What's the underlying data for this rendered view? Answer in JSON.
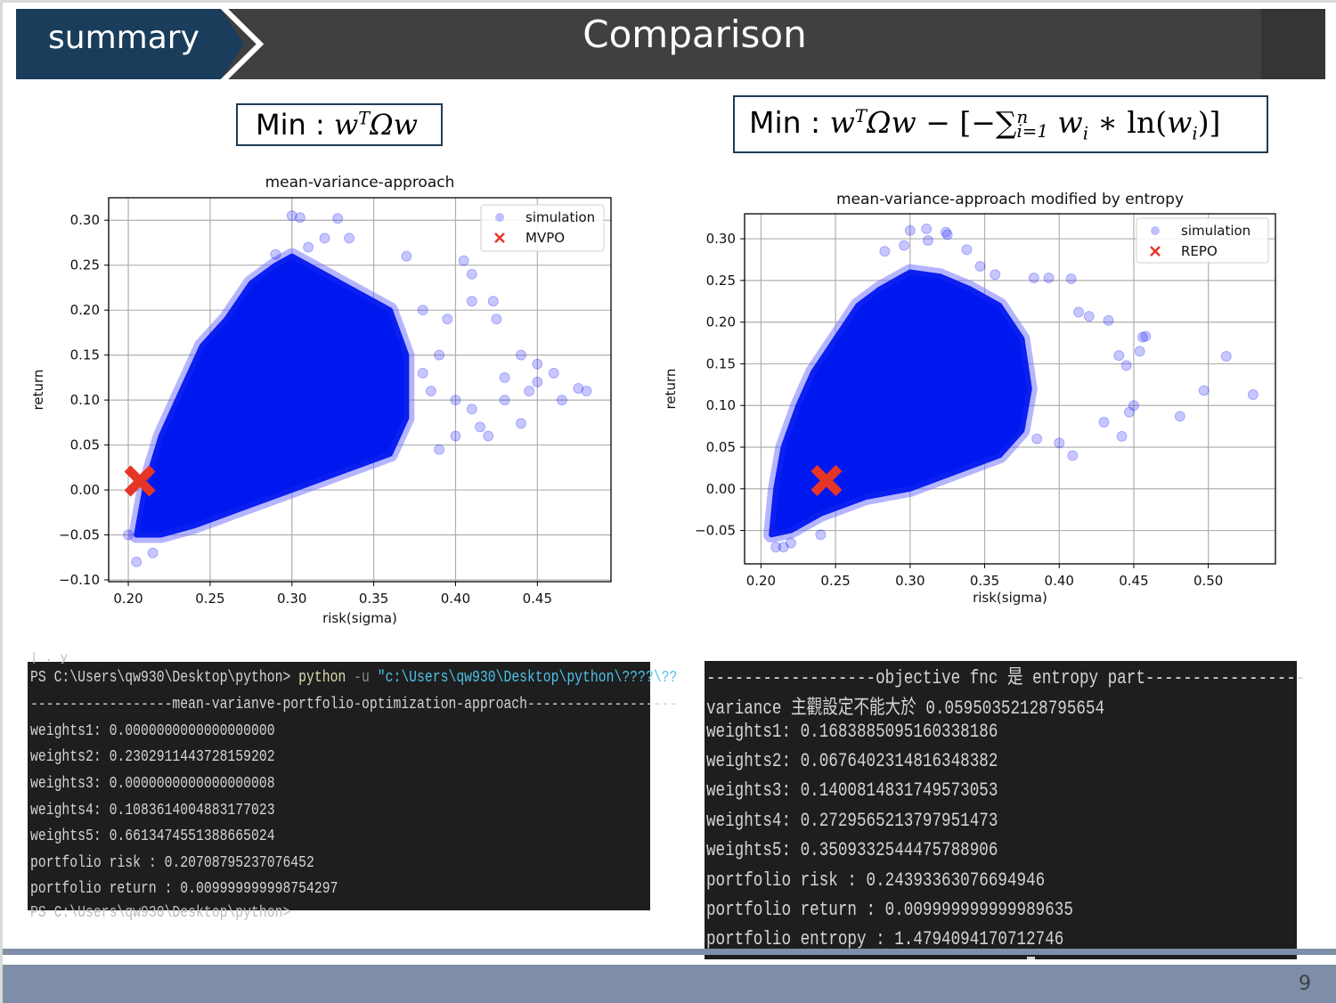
{
  "header": {
    "section_tab": "summary",
    "title": "Comparison",
    "colors": {
      "tab": "#1a3d5c",
      "bar": "#404040",
      "bar_right": "#363434"
    }
  },
  "formulas": {
    "left": {
      "prefix": "Min : ",
      "expr": "wᵀΩw"
    },
    "right": {
      "prefix": "Min : ",
      "expr": "wᵀΩw − [−∑ⁿᵢ₌₁ wᵢ ∗ ln(wᵢ)]"
    }
  },
  "chart_data": [
    {
      "type": "scatter",
      "title": "mean-variance-approach",
      "xlabel": "risk(sigma)",
      "ylabel": "return",
      "xlim": [
        0.188,
        0.495
      ],
      "ylim": [
        -0.102,
        0.325
      ],
      "xticks": [
        "0.20",
        "0.25",
        "0.30",
        "0.35",
        "0.40",
        "0.45"
      ],
      "xtick_values": [
        0.2,
        0.25,
        0.3,
        0.35,
        0.4,
        0.45
      ],
      "yticks": [
        "−0.10",
        "−0.05",
        "0.00",
        "0.05",
        "0.10",
        "0.15",
        "0.20",
        "0.25",
        "0.30"
      ],
      "ytick_values": [
        -0.1,
        -0.05,
        0.0,
        0.05,
        0.1,
        0.15,
        0.2,
        0.25,
        0.3
      ],
      "grid": true,
      "legend_position": "upper right",
      "legend": [
        "simulation",
        "MVPO"
      ],
      "series": [
        {
          "name": "simulation",
          "marker": "circle",
          "color": "#0000ff",
          "alpha": 0.2,
          "dense_region": [
            [
              0.205,
              -0.05
            ],
            [
              0.21,
              0.0
            ],
            [
              0.22,
              0.06
            ],
            [
              0.235,
              0.12
            ],
            [
              0.245,
              0.16
            ],
            [
              0.26,
              0.19
            ],
            [
              0.275,
              0.23
            ],
            [
              0.29,
              0.25
            ],
            [
              0.3,
              0.26
            ],
            [
              0.32,
              0.24
            ],
            [
              0.34,
              0.22
            ],
            [
              0.36,
              0.2
            ],
            [
              0.37,
              0.15
            ],
            [
              0.37,
              0.08
            ],
            [
              0.36,
              0.04
            ],
            [
              0.33,
              0.02
            ],
            [
              0.3,
              0.0
            ],
            [
              0.27,
              -0.02
            ],
            [
              0.24,
              -0.04
            ],
            [
              0.22,
              -0.05
            ]
          ],
          "outliers": [
            [
              0.3,
              0.305
            ],
            [
              0.305,
              0.303
            ],
            [
              0.328,
              0.302
            ],
            [
              0.32,
              0.28
            ],
            [
              0.335,
              0.28
            ],
            [
              0.31,
              0.27
            ],
            [
              0.29,
              0.262
            ],
            [
              0.37,
              0.26
            ],
            [
              0.405,
              0.255
            ],
            [
              0.41,
              0.24
            ],
            [
              0.41,
              0.21
            ],
            [
              0.425,
              0.19
            ],
            [
              0.423,
              0.21
            ],
            [
              0.38,
              0.2
            ],
            [
              0.395,
              0.19
            ],
            [
              0.39,
              0.15
            ],
            [
              0.44,
              0.15
            ],
            [
              0.45,
              0.14
            ],
            [
              0.46,
              0.13
            ],
            [
              0.475,
              0.113
            ],
            [
              0.48,
              0.11
            ],
            [
              0.465,
              0.1
            ],
            [
              0.43,
              0.125
            ],
            [
              0.445,
              0.11
            ],
            [
              0.44,
              0.074
            ],
            [
              0.42,
              0.06
            ],
            [
              0.4,
              0.06
            ],
            [
              0.39,
              0.045
            ],
            [
              0.415,
              0.07
            ],
            [
              0.205,
              -0.08
            ],
            [
              0.215,
              -0.07
            ],
            [
              0.2,
              -0.05
            ],
            [
              0.38,
              0.13
            ],
            [
              0.385,
              0.11
            ],
            [
              0.4,
              0.1
            ],
            [
              0.41,
              0.09
            ],
            [
              0.43,
              0.1
            ],
            [
              0.45,
              0.12
            ]
          ]
        },
        {
          "name": "MVPO",
          "marker": "x",
          "color": "#e53527",
          "points": [
            [
              0.2071,
              0.01
            ]
          ]
        }
      ]
    },
    {
      "type": "scatter",
      "title": "mean-variance-approach modified by entropy",
      "xlabel": "risk(sigma)",
      "ylabel": "return",
      "xlim": [
        0.189,
        0.545
      ],
      "ylim": [
        -0.09,
        0.33
      ],
      "xticks": [
        "0.20",
        "0.25",
        "0.30",
        "0.35",
        "0.40",
        "0.45",
        "0.50"
      ],
      "xtick_values": [
        0.2,
        0.25,
        0.3,
        0.35,
        0.4,
        0.45,
        0.5
      ],
      "yticks": [
        "−0.05",
        "0.00",
        "0.05",
        "0.10",
        "0.15",
        "0.20",
        "0.25",
        "0.30"
      ],
      "ytick_values": [
        -0.05,
        0.0,
        0.05,
        0.1,
        0.15,
        0.2,
        0.25,
        0.3
      ],
      "grid": true,
      "legend_position": "upper right",
      "legend": [
        "simulation",
        "REPO"
      ],
      "series": [
        {
          "name": "simulation",
          "marker": "circle",
          "color": "#0000ff",
          "alpha": 0.2,
          "dense_region": [
            [
              0.207,
              -0.055
            ],
            [
              0.21,
              0.0
            ],
            [
              0.215,
              0.05
            ],
            [
              0.225,
              0.1
            ],
            [
              0.235,
              0.14
            ],
            [
              0.25,
              0.18
            ],
            [
              0.265,
              0.22
            ],
            [
              0.28,
              0.24
            ],
            [
              0.3,
              0.26
            ],
            [
              0.32,
              0.255
            ],
            [
              0.34,
              0.24
            ],
            [
              0.36,
              0.22
            ],
            [
              0.375,
              0.18
            ],
            [
              0.38,
              0.12
            ],
            [
              0.375,
              0.07
            ],
            [
              0.36,
              0.04
            ],
            [
              0.33,
              0.02
            ],
            [
              0.3,
              0.0
            ],
            [
              0.27,
              -0.01
            ],
            [
              0.24,
              -0.03
            ],
            [
              0.22,
              -0.05
            ]
          ],
          "outliers": [
            [
              0.3,
              0.31
            ],
            [
              0.311,
              0.312
            ],
            [
              0.324,
              0.308
            ],
            [
              0.296,
              0.292
            ],
            [
              0.325,
              0.305
            ],
            [
              0.312,
              0.298
            ],
            [
              0.283,
              0.285
            ],
            [
              0.338,
              0.287
            ],
            [
              0.347,
              0.267
            ],
            [
              0.357,
              0.257
            ],
            [
              0.383,
              0.253
            ],
            [
              0.393,
              0.253
            ],
            [
              0.408,
              0.252
            ],
            [
              0.413,
              0.212
            ],
            [
              0.42,
              0.207
            ],
            [
              0.433,
              0.202
            ],
            [
              0.44,
              0.16
            ],
            [
              0.445,
              0.148
            ],
            [
              0.456,
              0.182
            ],
            [
              0.458,
              0.183
            ],
            [
              0.454,
              0.165
            ],
            [
              0.512,
              0.159
            ],
            [
              0.497,
              0.118
            ],
            [
              0.53,
              0.113
            ],
            [
              0.481,
              0.087
            ],
            [
              0.442,
              0.063
            ],
            [
              0.409,
              0.04
            ],
            [
              0.43,
              0.08
            ],
            [
              0.447,
              0.092
            ],
            [
              0.45,
              0.1
            ],
            [
              0.4,
              0.055
            ],
            [
              0.385,
              0.06
            ],
            [
              0.21,
              -0.07
            ],
            [
              0.215,
              -0.07
            ],
            [
              0.24,
              -0.055
            ],
            [
              0.22,
              -0.065
            ]
          ]
        },
        {
          "name": "REPO",
          "marker": "x",
          "color": "#e53527",
          "points": [
            [
              0.2439,
              0.01
            ]
          ]
        }
      ]
    }
  ],
  "terminal_left": {
    "prompt": "PS C:\\Users\\qw930\\Desktop\\python> ",
    "command": "python",
    "flag": " -u ",
    "path": "\"c:\\Users\\qw930\\Desktop\\python\\????\\??",
    "lines": [
      "------------------mean-varianve-portfolio-optimization-approach-------------------",
      "weights1:  0.0000000000000000000",
      "weights2:  0.2302911443728159202",
      "weights3:  0.0000000000000000008",
      "weights4:  0.1083614004883177023",
      "weights5:  0.6613474551388665024",
      "portfolio risk :  0.20708795237076452",
      "portfolio return :  0.009999999998754297"
    ]
  },
  "terminal_right": {
    "lines": [
      "------------------objective fnc 是 entropy part-----------------",
      "variance 主觀設定不能大於 0.05950352128795654",
      "weights1:  0.1683885095160338186",
      "weights2:  0.0676402314816348382",
      "weights3:  0.1400814831749573053",
      "weights4:  0.2729565213797951473",
      "weights5:  0.3509332544475788906",
      "portfolio risk :  0.24393363076694946",
      "portfolio return :  0.009999999999989635",
      "portfolio entropy :  1.4794094170712746"
    ]
  },
  "footer": {
    "page_number": "9",
    "color": "#7f8ea8"
  }
}
